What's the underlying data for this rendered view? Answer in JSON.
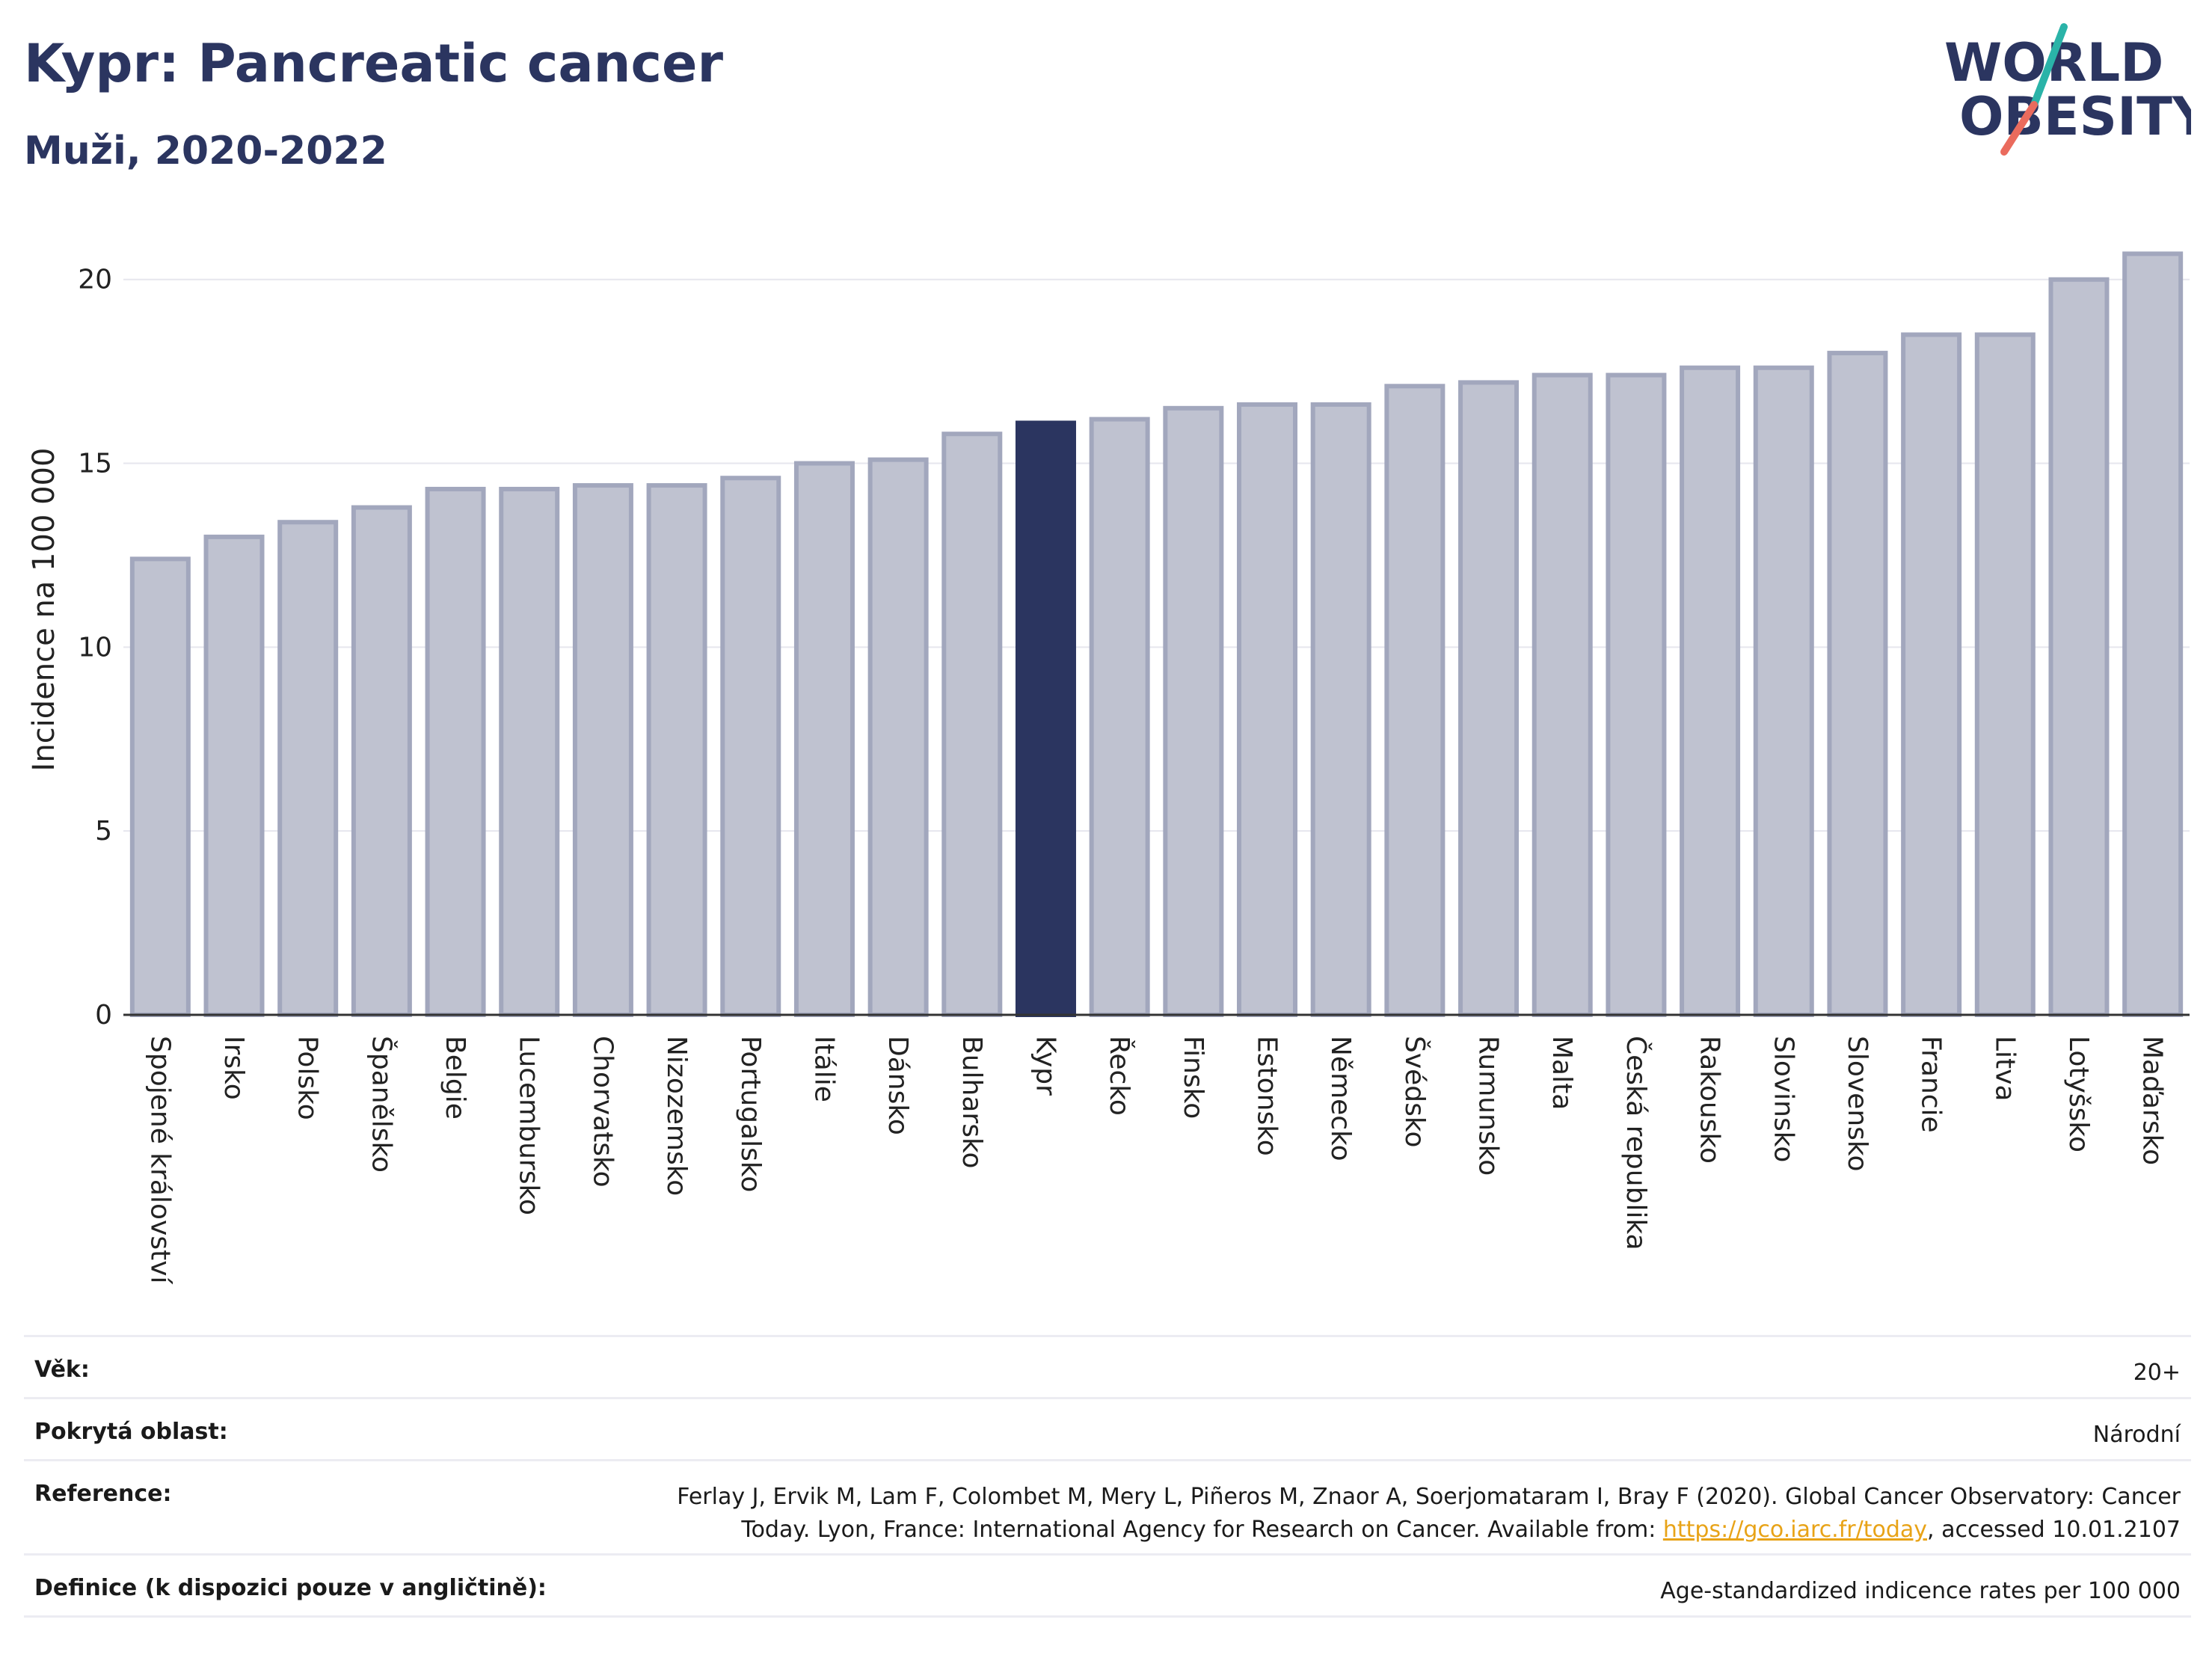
{
  "header": {
    "title": "Kypr: Pancreatic cancer",
    "subtitle": "Muži, 2020-2022",
    "logo_line1": "WORLD",
    "logo_line2": "OBESITY"
  },
  "colors": {
    "highlight": "#2b3560",
    "bar_fill": "#bfc2d0",
    "bar_stroke": "#a2a7bd",
    "teal": "#2ab3a8",
    "coral": "#ea6b5d",
    "link": "#e8a317"
  },
  "chart_data": {
    "type": "bar",
    "title": "Kypr: Pancreatic cancer",
    "subtitle": "Muži, 2020-2022",
    "xlabel": "",
    "ylabel": "Incidence na 100 000",
    "ylim": [
      0,
      21.5
    ],
    "yticks": [
      0,
      5,
      10,
      15,
      20
    ],
    "grid": true,
    "highlight": "Kypr",
    "categories": [
      "Spojené království",
      "Irsko",
      "Polsko",
      "Španělsko",
      "Belgie",
      "Lucembursko",
      "Chorvatsko",
      "Nizozemsko",
      "Portugalsko",
      "Itálie",
      "Dánsko",
      "Bulharsko",
      "Kypr",
      "Řecko",
      "Finsko",
      "Estonsko",
      "Německo",
      "Švédsko",
      "Rumunsko",
      "Malta",
      "Česká republika",
      "Rakousko",
      "Slovinsko",
      "Slovensko",
      "Francie",
      "Litva",
      "Lotyšsko",
      "Maďarsko"
    ],
    "values": [
      12.4,
      13.0,
      13.4,
      13.8,
      14.3,
      14.3,
      14.4,
      14.4,
      14.6,
      15.0,
      15.1,
      15.8,
      16.1,
      16.2,
      16.5,
      16.6,
      16.6,
      17.1,
      17.2,
      17.4,
      17.4,
      17.6,
      17.6,
      18.0,
      18.5,
      18.5,
      20.0,
      20.7
    ]
  },
  "info": {
    "age_label": "Věk:",
    "age_value": "20+",
    "area_label": "Pokrytá oblast:",
    "area_value": "Národní",
    "ref_label": "Reference:",
    "ref_text_1": "Ferlay J, Ervik M, Lam F, Colombet M, Mery L, Piñeros M, Znaor A, Soerjomataram I, Bray F (2020). Global Cancer Observatory: Cancer",
    "ref_text_2": "Today. Lyon, France: International Agency for Research on Cancer. Available from:",
    "ref_link": "https://gco.iarc.fr/today",
    "ref_text_3": ", accessed 10.01.2107",
    "def_label": "Definice (k dispozici pouze v angličtině):",
    "def_value": "Age-standardized indicence rates per 100 000"
  }
}
